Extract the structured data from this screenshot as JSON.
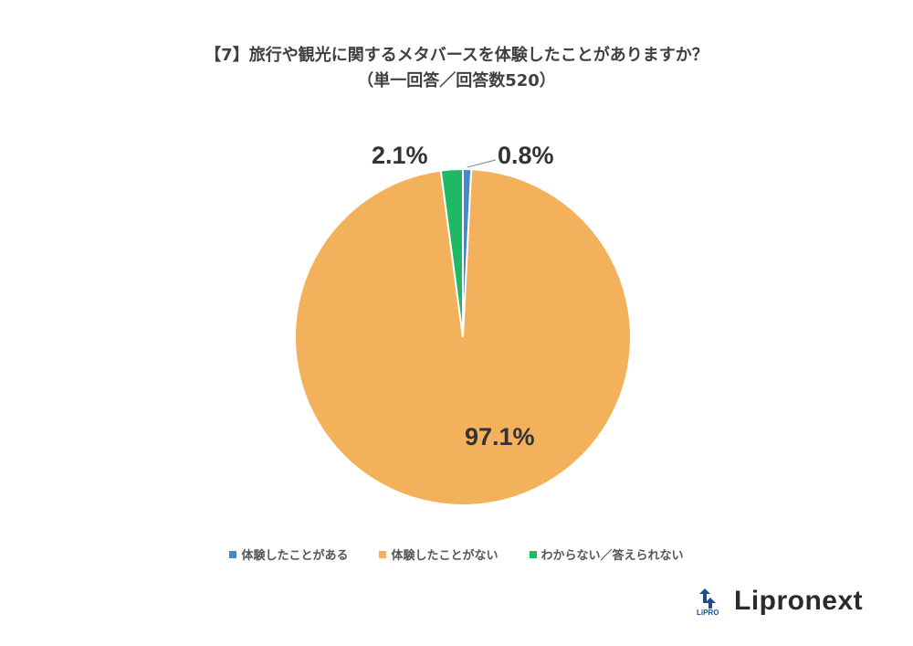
{
  "header": {
    "title": "【7】旅行や観光に関するメタバースを体験したことがありますか？",
    "subtitle": "（単一回答／回答数520）"
  },
  "chart_data": {
    "type": "pie",
    "title": "【7】旅行や観光に関するメタバースを体験したことがありますか？",
    "subtitle": "（単一回答／回答数520）",
    "n": 520,
    "slices": [
      {
        "label": "体験したことがある",
        "value": 0.8,
        "display": "0.8%",
        "color": "#4a86c0"
      },
      {
        "label": "体験したことがない",
        "value": 97.1,
        "display": "97.1%",
        "color": "#f2b15a"
      },
      {
        "label": "わからない／答えられない",
        "value": 2.1,
        "display": "2.1%",
        "color": "#1fb864"
      }
    ],
    "legend_position": "bottom"
  },
  "logo": {
    "name": "Lipronext",
    "mark_text": "LiPRO"
  }
}
